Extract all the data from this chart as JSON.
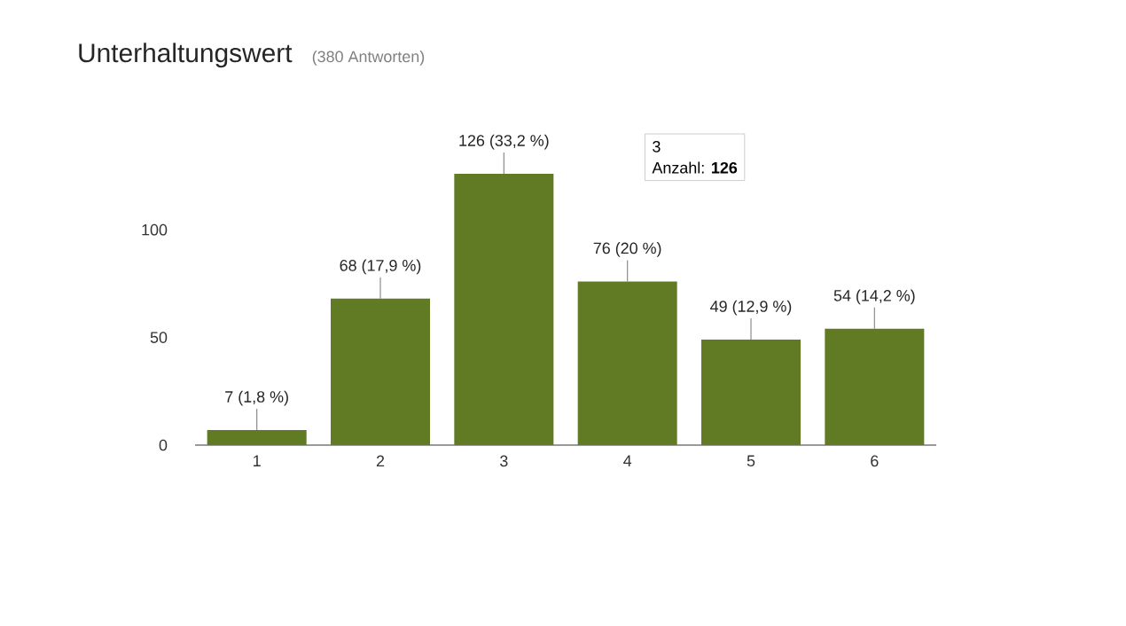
{
  "chart_data": {
    "type": "bar",
    "title": "Unterhaltungswert",
    "subtitle": "(380 Antworten)",
    "categories": [
      "1",
      "2",
      "3",
      "4",
      "5",
      "6"
    ],
    "values": [
      7,
      68,
      126,
      76,
      49,
      54
    ],
    "value_labels": [
      "7 (1,8 %)",
      "68 (17,9 %)",
      "126 (33,2 %)",
      "76 (20 %)",
      "49 (12,9 %)",
      "54 (14,2 %)"
    ],
    "color": "#617a24",
    "ylim": [
      0,
      126
    ],
    "yticks": [
      0,
      50,
      100
    ],
    "annotations": [
      "3",
      "Anzahl: **126**"
    ]
  }
}
